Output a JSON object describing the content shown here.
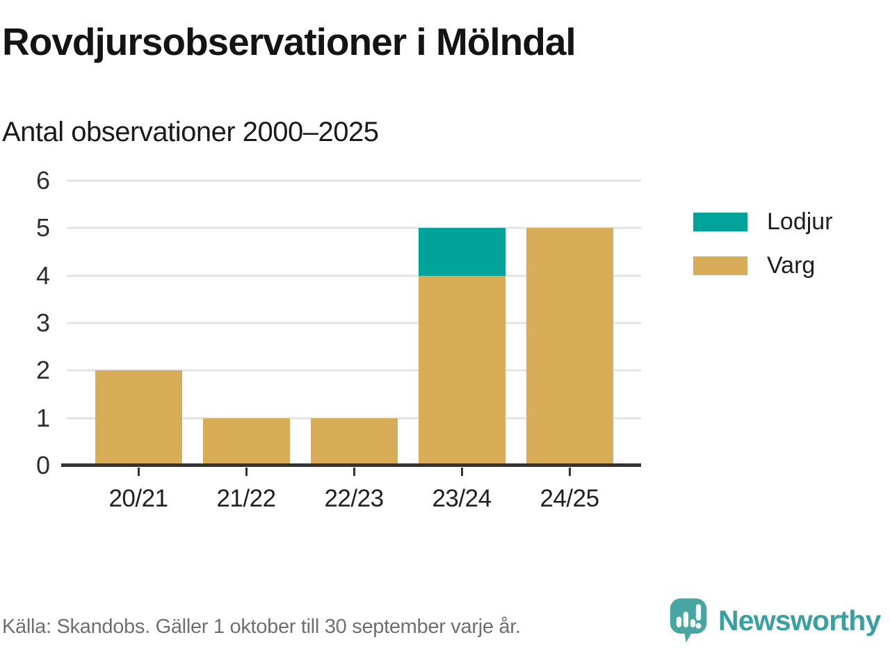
{
  "header": {
    "title": "Rovdjursobservationer i Mölndal",
    "subtitle": "Antal observationer 2000–2025"
  },
  "chart_data": {
    "type": "bar",
    "stacked": true,
    "title": "Rovdjursobservationer i Mölndal",
    "subtitle": "Antal observationer 2000–2025",
    "categories": [
      "20/21",
      "21/22",
      "22/23",
      "23/24",
      "24/25"
    ],
    "series": [
      {
        "name": "Lodjur",
        "color": "#00a29a",
        "values": [
          0,
          0,
          0,
          1,
          0
        ]
      },
      {
        "name": "Varg",
        "color": "#d9ac58",
        "values": [
          2,
          1,
          1,
          4,
          5
        ]
      }
    ],
    "xlabel": "",
    "ylabel": "",
    "ylim": [
      0,
      6
    ],
    "yticks": [
      0,
      1,
      2,
      3,
      4,
      5,
      6
    ],
    "grid": true,
    "legend_position": "right"
  },
  "footer": {
    "source": "Källa: Skandobs. Gäller 1 oktober till 30 september varje år.",
    "brand": "Newsworthy"
  },
  "colors": {
    "lodjur": "#00a29a",
    "varg": "#d9ac58",
    "axis": "#333333",
    "grid": "#e3e3e3",
    "source_text": "#6f6f6f",
    "brand_teal": "#38a0a0",
    "logo_bubble": "#48a5a2"
  }
}
